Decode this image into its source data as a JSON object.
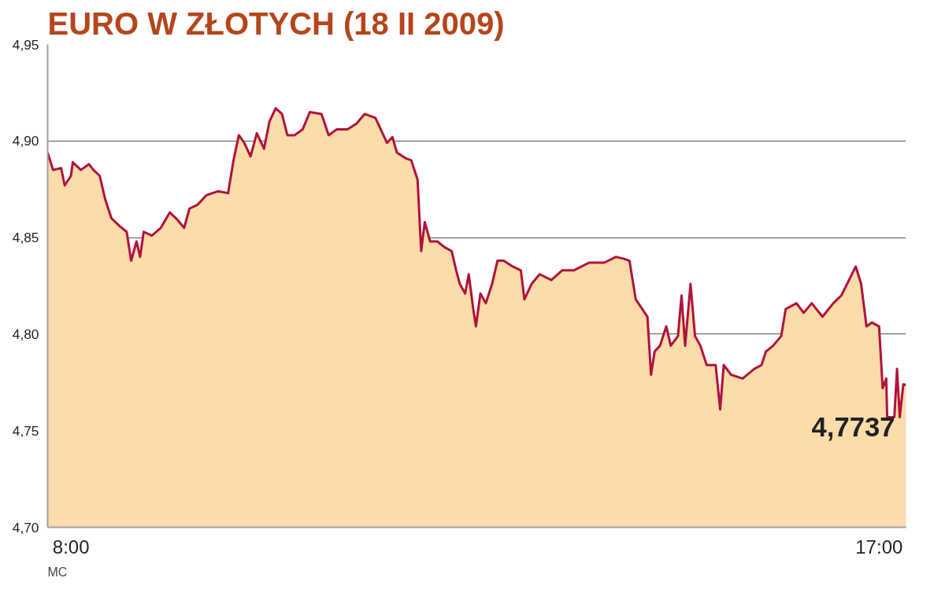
{
  "chart_data": {
    "type": "area",
    "title": "EURO W ZŁOTYCH (18 II 2009)",
    "x": [
      7.74,
      7.8,
      7.89,
      7.93,
      8.0,
      8.02,
      8.11,
      8.2,
      8.25,
      8.32,
      8.38,
      8.45,
      8.54,
      8.62,
      8.67,
      8.73,
      8.77,
      8.81,
      8.9,
      9.0,
      9.1,
      9.17,
      9.26,
      9.32,
      9.41,
      9.51,
      9.64,
      9.75,
      9.81,
      9.87,
      9.93,
      10.0,
      10.07,
      10.15,
      10.21,
      10.28,
      10.35,
      10.41,
      10.49,
      10.58,
      10.66,
      10.79,
      10.87,
      10.96,
      11.08,
      11.18,
      11.27,
      11.33,
      11.39,
      11.48,
      11.52,
      11.58,
      11.63,
      11.73,
      11.79,
      11.86,
      11.9,
      11.94,
      12.0,
      12.08,
      12.16,
      12.24,
      12.29,
      12.33,
      12.39,
      12.43,
      12.48,
      12.51,
      12.56,
      12.62,
      12.69,
      12.75,
      12.82,
      12.92,
      13.01,
      13.05,
      13.13,
      13.22,
      13.35,
      13.47,
      13.6,
      13.77,
      13.94,
      14.07,
      14.16,
      14.22,
      14.29,
      14.42,
      14.46,
      14.5,
      14.56,
      14.63,
      14.68,
      14.76,
      14.8,
      14.84,
      14.9,
      14.95,
      15.01,
      15.08,
      15.18,
      15.23,
      15.27,
      15.35,
      15.48,
      15.61,
      15.69,
      15.74,
      15.82,
      15.91,
      15.96,
      16.08,
      16.16,
      16.25,
      16.37,
      16.49,
      16.58,
      16.74,
      16.8,
      16.86,
      16.92,
      17.0,
      17.04,
      17.08,
      17.09,
      17.17,
      17.2,
      17.23,
      17.27,
      17.3
    ],
    "series": [
      {
        "color": "#b0123b",
        "values": [
          4.894,
          4.885,
          4.886,
          4.877,
          4.882,
          4.889,
          4.885,
          4.888,
          4.885,
          4.882,
          4.87,
          4.86,
          4.856,
          4.853,
          4.838,
          4.848,
          4.84,
          4.853,
          4.851,
          4.855,
          4.863,
          4.86,
          4.855,
          4.865,
          4.867,
          4.872,
          4.874,
          4.873,
          4.89,
          4.903,
          4.899,
          4.892,
          4.904,
          4.896,
          4.91,
          4.917,
          4.914,
          4.903,
          4.903,
          4.906,
          4.915,
          4.914,
          4.903,
          4.906,
          4.906,
          4.909,
          4.914,
          4.913,
          4.912,
          4.903,
          4.899,
          4.902,
          4.894,
          4.891,
          4.89,
          4.88,
          4.843,
          4.858,
          4.848,
          4.848,
          4.845,
          4.843,
          4.833,
          4.826,
          4.821,
          4.831,
          4.813,
          4.804,
          4.821,
          4.816,
          4.826,
          4.838,
          4.838,
          4.835,
          4.833,
          4.818,
          4.826,
          4.831,
          4.828,
          4.833,
          4.833,
          4.837,
          4.837,
          4.84,
          4.839,
          4.838,
          4.818,
          4.809,
          4.779,
          4.791,
          4.794,
          4.804,
          4.794,
          4.799,
          4.82,
          4.794,
          4.826,
          4.799,
          4.794,
          4.784,
          4.784,
          4.761,
          4.784,
          4.779,
          4.777,
          4.782,
          4.784,
          4.791,
          4.794,
          4.799,
          4.813,
          4.816,
          4.811,
          4.816,
          4.809,
          4.816,
          4.82,
          4.835,
          4.826,
          4.804,
          4.806,
          4.804,
          4.772,
          4.777,
          4.757,
          4.757,
          4.782,
          4.757,
          4.774,
          4.7737
        ]
      }
    ],
    "xlim": [
      7.74,
      17.3
    ],
    "xticks": [
      {
        "value": 8,
        "label": "8:00"
      },
      {
        "value": 17,
        "label": "17:00"
      }
    ],
    "ylim": [
      4.7,
      4.95
    ],
    "yticks": [
      {
        "value": 4.7,
        "label": "4,70"
      },
      {
        "value": 4.75,
        "label": "4,75"
      },
      {
        "value": 4.8,
        "label": "4,80"
      },
      {
        "value": 4.85,
        "label": "4,85"
      },
      {
        "value": 4.9,
        "label": "4,90"
      },
      {
        "value": 4.95,
        "label": "4,95"
      }
    ],
    "grid": "y",
    "annotations": [
      {
        "text": "4,7737",
        "x": 17.3,
        "y": 4.7737
      },
      "MC"
    ]
  }
}
